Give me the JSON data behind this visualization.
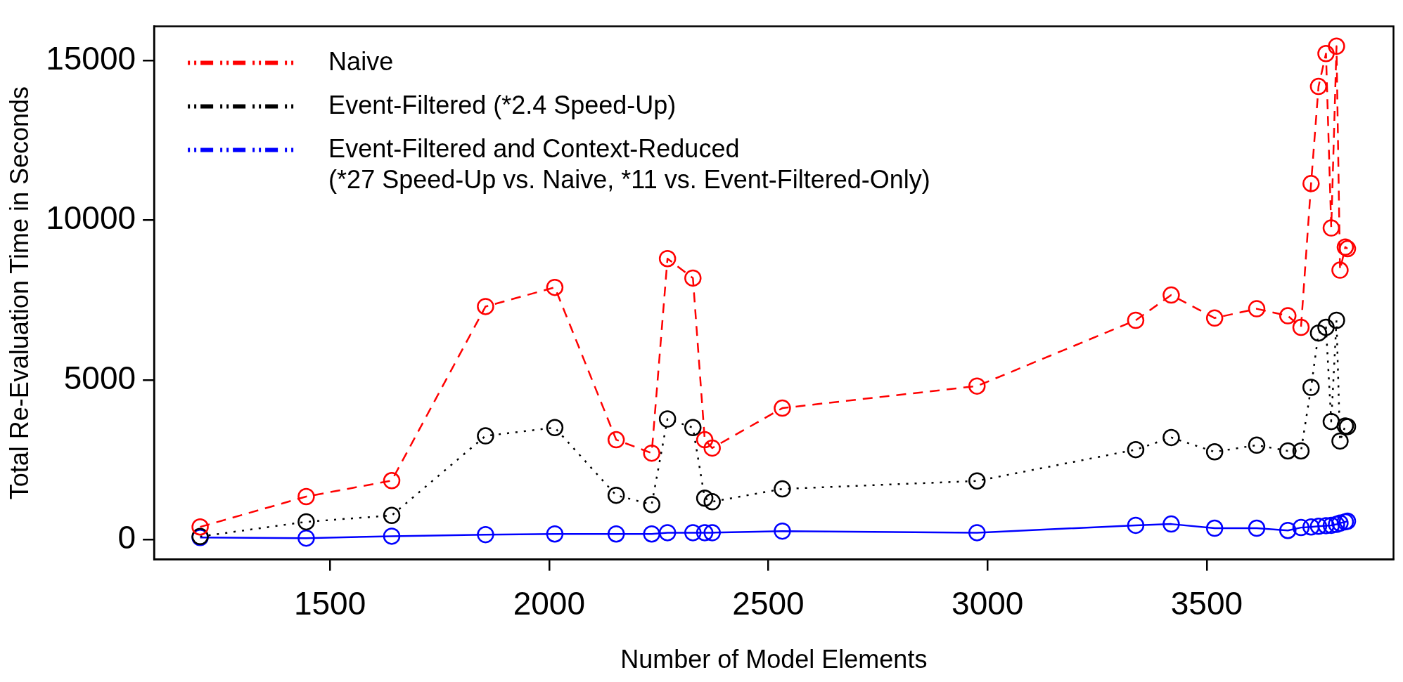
{
  "chart_data": {
    "type": "line",
    "xlabel": "Number of Model Elements",
    "ylabel": "Total Re-Evaluation Time in Seconds",
    "x": [
      1204,
      1446,
      1641,
      1855,
      2013,
      2153,
      2234,
      2270,
      2328,
      2355,
      2372,
      2532,
      2976,
      3338,
      3419,
      3518,
      3614,
      3685,
      3715,
      3738,
      3755,
      3772,
      3784,
      3796,
      3804,
      3816,
      3821
    ],
    "xlim": [
      1099,
      3926
    ],
    "xticks": [
      1500,
      2000,
      2500,
      3000,
      3500
    ],
    "ylim": [
      -620,
      16070
    ],
    "yticks": [
      0,
      5000,
      10000,
      15000
    ],
    "grid": false,
    "legend": "top left",
    "marker": "circle",
    "series": [
      {
        "name": "Naive",
        "color": "#ff0000",
        "line_style": "dashed",
        "values": [
          400,
          1350,
          1850,
          7300,
          7900,
          3130,
          2710,
          8800,
          8190,
          3130,
          2870,
          4120,
          4810,
          6870,
          7660,
          6940,
          7230,
          7010,
          6650,
          11150,
          14190,
          15220,
          9760,
          15450,
          8440,
          9160,
          9110
        ]
      },
      {
        "name": "Event-Filtered (*2.4 Speed-Up)",
        "color": "#000000",
        "line_style": "dotted",
        "values": [
          100,
          560,
          760,
          3250,
          3510,
          1390,
          1100,
          3780,
          3510,
          1300,
          1190,
          1590,
          1840,
          2820,
          3200,
          2750,
          2960,
          2780,
          2780,
          4770,
          6470,
          6650,
          3700,
          6870,
          3090,
          3560,
          3540
        ]
      },
      {
        "name": "Event-Filtered and Context-Reduced\n(*27 Speed-Up vs. Naive, *11 vs. Event-Filtered-Only)",
        "color": "#0000ff",
        "line_style": "solid",
        "values": [
          70,
          50,
          110,
          160,
          180,
          180,
          180,
          220,
          220,
          220,
          220,
          270,
          220,
          450,
          490,
          360,
          360,
          290,
          380,
          400,
          420,
          440,
          450,
          480,
          520,
          560,
          580
        ]
      }
    ]
  }
}
